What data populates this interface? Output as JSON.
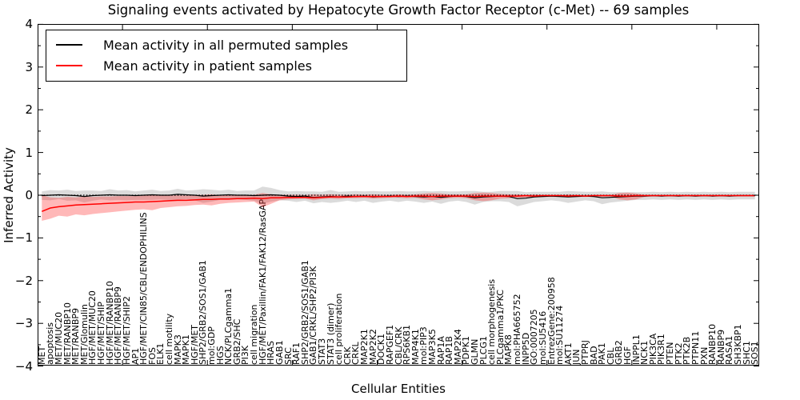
{
  "title": "Signaling events activated by Hepatocyte Growth Factor Receptor (c-Met) -- 69 samples",
  "legend": {
    "entries": [
      {
        "label": "Mean activity in all permuted samples",
        "color": "#000000"
      },
      {
        "label": "Mean activity in patient samples",
        "color": "#ff0000"
      }
    ]
  },
  "axes": {
    "ylabel": "Inferred Activity",
    "xlabel": "Cellular Entities",
    "yticks": [
      {
        "v": 4,
        "label": "4"
      },
      {
        "v": 3,
        "label": "3"
      },
      {
        "v": 2,
        "label": "2"
      },
      {
        "v": 1,
        "label": "1"
      },
      {
        "v": 0,
        "label": "0"
      },
      {
        "v": -1,
        "label": "−1"
      },
      {
        "v": -2,
        "label": "−2"
      },
      {
        "v": -3,
        "label": "−3"
      },
      {
        "v": -4,
        "label": "−4"
      }
    ]
  },
  "chart_data": {
    "type": "line",
    "title": "Signaling events activated by Hepatocyte Growth Factor Receptor (c-Met) -- 69 samples",
    "xlabel": "Cellular Entities",
    "ylabel": "Inferred Activity",
    "ylim": [
      -4,
      4
    ],
    "grid": false,
    "legend_position": "upper left",
    "baseline": {
      "y": 0,
      "style": "dotted",
      "color": "#000000"
    },
    "categories": [
      "MET",
      "apoptosis",
      "MET/MUC20",
      "MET/RANBP10",
      "MET/RANBP9",
      "MET/Glomulin",
      "HGF/MET/MUC20",
      "HGF/MET/SHIP",
      "HGF/MET/RANBP10",
      "HGF/MET/RANBP9",
      "HGF/MET/SHIP2",
      "AP1",
      "HGF/MET/CIN85/CBL/ENDOPHILINS",
      "FOS",
      "ELK1",
      "cell motility",
      "MAPK3",
      "MAPK1",
      "HGF/MET",
      "SHP2/GRB2/SOS1/GAB1",
      "mol:GDP",
      "HGS",
      "NCK/PLCgamma1",
      "GRB2/SHC",
      "PI3K",
      "cell migration",
      "HGF/MET/Paxillin/FAK1/FAK12/RasGAP",
      "HRAS",
      "GAB1",
      "SRC",
      "RAF1",
      "SHP2/GRB2/SOS1/GAB1",
      "GAB1/CRKL/SHP2/PI3K",
      "STAT3",
      "STAT3 (dimer)",
      "cell proliferation",
      "CRK",
      "CRKL",
      "MAP2K1",
      "MAP2K2",
      "DOCK1",
      "RAPGEF1",
      "CBL/CRK",
      "RPS6KB1",
      "MAP4K1",
      "mol:PIP3",
      "MAP3K5",
      "RAP1A",
      "RAP1B",
      "MAP2K4",
      "PDPK1",
      "GLMN",
      "PLCG1",
      "cell morphogenesis",
      "PLCgamma1/PKC",
      "MAPK8",
      "mol:PHA665752",
      "INPP5D",
      "GO:0007205",
      "mol:SU5416",
      "EntrezGene:200958",
      "mol:SU11274",
      "AKT1",
      "JUN",
      "PTPRJ",
      "BAD",
      "PAK1",
      "CBL",
      "GRB2",
      "HGF",
      "INPPL1",
      "NCK1",
      "PIK3CA",
      "PIK3R1",
      "PTEN",
      "PTK2",
      "PTK2B",
      "PTPN11",
      "PXN",
      "RANBP10",
      "RANBP9",
      "RASA1",
      "SH3KBP1",
      "SHC1",
      "SOS1"
    ],
    "series": [
      {
        "name": "Mean activity in all permuted samples",
        "color": "#000000",
        "values": [
          -0.01,
          0.0,
          0.01,
          0.0,
          -0.01,
          -0.03,
          -0.01,
          0.0,
          0.01,
          0.0,
          0.0,
          -0.01,
          0.0,
          0.01,
          0.0,
          0.0,
          0.02,
          0.01,
          0.0,
          -0.02,
          -0.01,
          0.0,
          0.01,
          0.0,
          0.0,
          -0.01,
          0.0,
          0.01,
          0.0,
          -0.02,
          -0.03,
          -0.02,
          -0.05,
          -0.04,
          -0.03,
          -0.04,
          -0.02,
          -0.03,
          -0.02,
          -0.04,
          -0.03,
          -0.02,
          -0.03,
          -0.02,
          -0.03,
          -0.04,
          -0.03,
          -0.05,
          -0.03,
          -0.02,
          -0.03,
          -0.06,
          -0.04,
          -0.03,
          -0.02,
          -0.03,
          -0.08,
          -0.07,
          -0.04,
          -0.03,
          -0.02,
          -0.03,
          -0.04,
          -0.03,
          -0.02,
          -0.03,
          -0.06,
          -0.05,
          -0.04,
          -0.03,
          -0.02,
          -0.02,
          -0.01,
          -0.02,
          -0.01,
          -0.02,
          -0.01,
          -0.02,
          -0.01,
          -0.02,
          -0.01,
          -0.02,
          -0.01,
          -0.01,
          -0.01
        ],
        "band_halfwidth": [
          0.1,
          0.12,
          0.1,
          0.13,
          0.11,
          0.14,
          0.12,
          0.1,
          0.13,
          0.11,
          0.12,
          0.1,
          0.11,
          0.12,
          0.1,
          0.11,
          0.13,
          0.1,
          0.12,
          0.16,
          0.14,
          0.11,
          0.12,
          0.1,
          0.11,
          0.12,
          0.2,
          0.16,
          0.12,
          0.11,
          0.13,
          0.11,
          0.14,
          0.12,
          0.15,
          0.12,
          0.11,
          0.13,
          0.11,
          0.14,
          0.12,
          0.11,
          0.13,
          0.11,
          0.12,
          0.14,
          0.12,
          0.15,
          0.12,
          0.11,
          0.13,
          0.16,
          0.12,
          0.11,
          0.12,
          0.13,
          0.18,
          0.14,
          0.12,
          0.11,
          0.1,
          0.11,
          0.14,
          0.12,
          0.1,
          0.11,
          0.15,
          0.12,
          0.11,
          0.1,
          0.09,
          0.09,
          0.09,
          0.09,
          0.09,
          0.09,
          0.09,
          0.09,
          0.09,
          0.09,
          0.09,
          0.09,
          0.09,
          0.09,
          0.09
        ],
        "band_fill": "rgba(110,110,110,0.25)"
      },
      {
        "name": "Mean activity in patient samples",
        "color": "#ff0000",
        "values": [
          -0.38,
          -0.3,
          -0.27,
          -0.25,
          -0.23,
          -0.22,
          -0.21,
          -0.2,
          -0.19,
          -0.18,
          -0.17,
          -0.16,
          -0.16,
          -0.15,
          -0.14,
          -0.13,
          -0.12,
          -0.12,
          -0.11,
          -0.1,
          -0.1,
          -0.09,
          -0.09,
          -0.08,
          -0.08,
          -0.07,
          -0.08,
          -0.06,
          -0.06,
          -0.05,
          -0.05,
          -0.05,
          -0.06,
          -0.05,
          -0.04,
          -0.04,
          -0.04,
          -0.03,
          -0.03,
          -0.03,
          -0.03,
          -0.03,
          -0.02,
          -0.03,
          -0.02,
          -0.02,
          -0.03,
          -0.02,
          -0.02,
          -0.02,
          -0.02,
          -0.03,
          -0.02,
          -0.02,
          -0.02,
          -0.02,
          -0.02,
          -0.01,
          -0.02,
          -0.01,
          -0.01,
          -0.01,
          -0.02,
          -0.01,
          -0.02,
          -0.01,
          -0.01,
          -0.01,
          -0.02,
          -0.02,
          -0.01,
          -0.01,
          -0.01,
          -0.01,
          -0.01,
          -0.01,
          -0.01,
          -0.01,
          -0.01,
          -0.01,
          -0.01,
          -0.01,
          -0.01,
          -0.01,
          -0.01
        ],
        "band_lower": [
          -0.6,
          -0.55,
          -0.48,
          -0.5,
          -0.45,
          -0.47,
          -0.44,
          -0.42,
          -0.4,
          -0.38,
          -0.36,
          -0.34,
          -0.33,
          -0.35,
          -0.3,
          -0.28,
          -0.26,
          -0.25,
          -0.23,
          -0.22,
          -0.24,
          -0.2,
          -0.18,
          -0.17,
          -0.16,
          -0.15,
          -0.28,
          -0.2,
          -0.12,
          -0.1,
          -0.09,
          -0.08,
          -0.12,
          -0.09,
          -0.08,
          -0.09,
          -0.07,
          -0.07,
          -0.06,
          -0.08,
          -0.07,
          -0.06,
          -0.06,
          -0.07,
          -0.06,
          -0.1,
          -0.12,
          -0.1,
          -0.07,
          -0.06,
          -0.07,
          -0.12,
          -0.14,
          -0.12,
          -0.08,
          -0.07,
          -0.06,
          -0.05,
          -0.05,
          -0.04,
          -0.04,
          -0.04,
          -0.05,
          -0.04,
          -0.04,
          -0.03,
          -0.04,
          -0.03,
          -0.1,
          -0.12,
          -0.1,
          -0.04,
          -0.03,
          -0.03,
          -0.03,
          -0.03,
          -0.03,
          -0.03,
          -0.03,
          -0.03,
          -0.03,
          -0.03,
          -0.03,
          -0.03,
          -0.03
        ],
        "band_upper": [
          0.0,
          -0.05,
          -0.06,
          -0.04,
          -0.05,
          -0.03,
          -0.04,
          -0.03,
          -0.03,
          -0.02,
          -0.02,
          -0.02,
          -0.01,
          0.0,
          -0.01,
          -0.01,
          0.0,
          -0.01,
          0.0,
          0.01,
          0.02,
          0.0,
          0.0,
          -0.01,
          0.0,
          0.01,
          0.05,
          0.02,
          0.01,
          0.01,
          0.01,
          0.0,
          0.02,
          0.01,
          0.02,
          0.01,
          0.01,
          0.02,
          0.01,
          0.02,
          0.01,
          0.01,
          0.02,
          0.01,
          0.02,
          0.04,
          0.05,
          0.04,
          0.02,
          0.02,
          0.02,
          0.05,
          0.06,
          0.05,
          0.03,
          0.02,
          0.02,
          0.01,
          0.02,
          0.01,
          0.01,
          0.01,
          0.02,
          0.01,
          0.01,
          0.01,
          0.01,
          0.01,
          0.05,
          0.06,
          0.04,
          0.01,
          0.01,
          0.01,
          0.01,
          0.01,
          0.01,
          0.01,
          0.01,
          0.01,
          0.01,
          0.01,
          0.01,
          0.01,
          0.01
        ],
        "band_fill": "rgba(255,0,0,0.28)"
      }
    ]
  }
}
